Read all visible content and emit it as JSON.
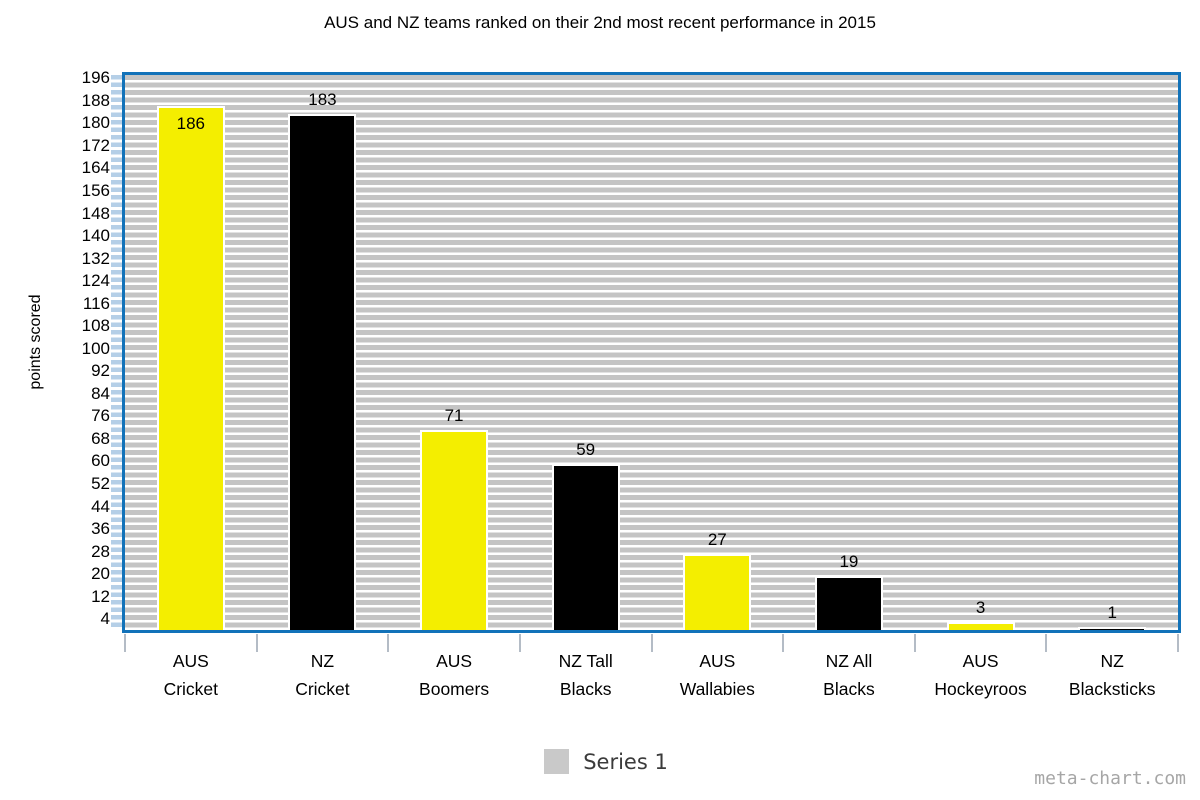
{
  "title": "AUS and NZ teams ranked on their 2nd most recent performance in 2015",
  "watermark": "meta-chart.com",
  "legend": {
    "label": "Series 1",
    "swatch_color": "#c9c9c9",
    "position": "bottom"
  },
  "colors": {
    "plot_border_blue": "#1272b9",
    "stripe_gray": "#c4c4c4",
    "minor_tick_blue": "#b5cfe7",
    "x_tick_gray": "#b4bcc6",
    "bar_yellow": "#f4ee00",
    "bar_black": "#000000",
    "bar_outline": "#ffffff",
    "watermark_gray": "#a6a6a6"
  },
  "chart_data": {
    "type": "bar",
    "title": "AUS and NZ teams ranked on their 2nd most recent performance in 2015",
    "xlabel": "",
    "ylabel": "points scored",
    "categories": [
      "AUS Cricket",
      "NZ Cricket",
      "AUS Boomers",
      "NZ Tall Blacks",
      "AUS Wallabies",
      "NZ All Blacks",
      "AUS Hockeyroos",
      "NZ Blacksticks"
    ],
    "category_lines": [
      [
        "AUS",
        "Cricket"
      ],
      [
        "NZ",
        "Cricket"
      ],
      [
        "AUS",
        "Boomers"
      ],
      [
        "NZ Tall",
        "Blacks"
      ],
      [
        "AUS",
        "Wallabies"
      ],
      [
        "NZ All",
        "Blacks"
      ],
      [
        "AUS",
        "Hockeyroos"
      ],
      [
        "NZ",
        "Blacksticks"
      ]
    ],
    "values": [
      186,
      183,
      71,
      59,
      27,
      19,
      3,
      1
    ],
    "bar_colors": [
      "#f4ee00",
      "#000000",
      "#f4ee00",
      "#000000",
      "#f4ee00",
      "#000000",
      "#f4ee00",
      "#000000"
    ],
    "series": [
      {
        "name": "Series 1",
        "values": [
          186,
          183,
          71,
          59,
          27,
          19,
          3,
          1
        ]
      }
    ],
    "y_ticks": [
      196,
      188,
      180,
      172,
      164,
      156,
      148,
      140,
      132,
      124,
      116,
      108,
      100,
      92,
      84,
      76,
      68,
      60,
      52,
      44,
      36,
      28,
      20,
      12,
      4
    ],
    "ylim": [
      0,
      197
    ],
    "grid": "striped-horizontal",
    "legend_position": "bottom"
  }
}
